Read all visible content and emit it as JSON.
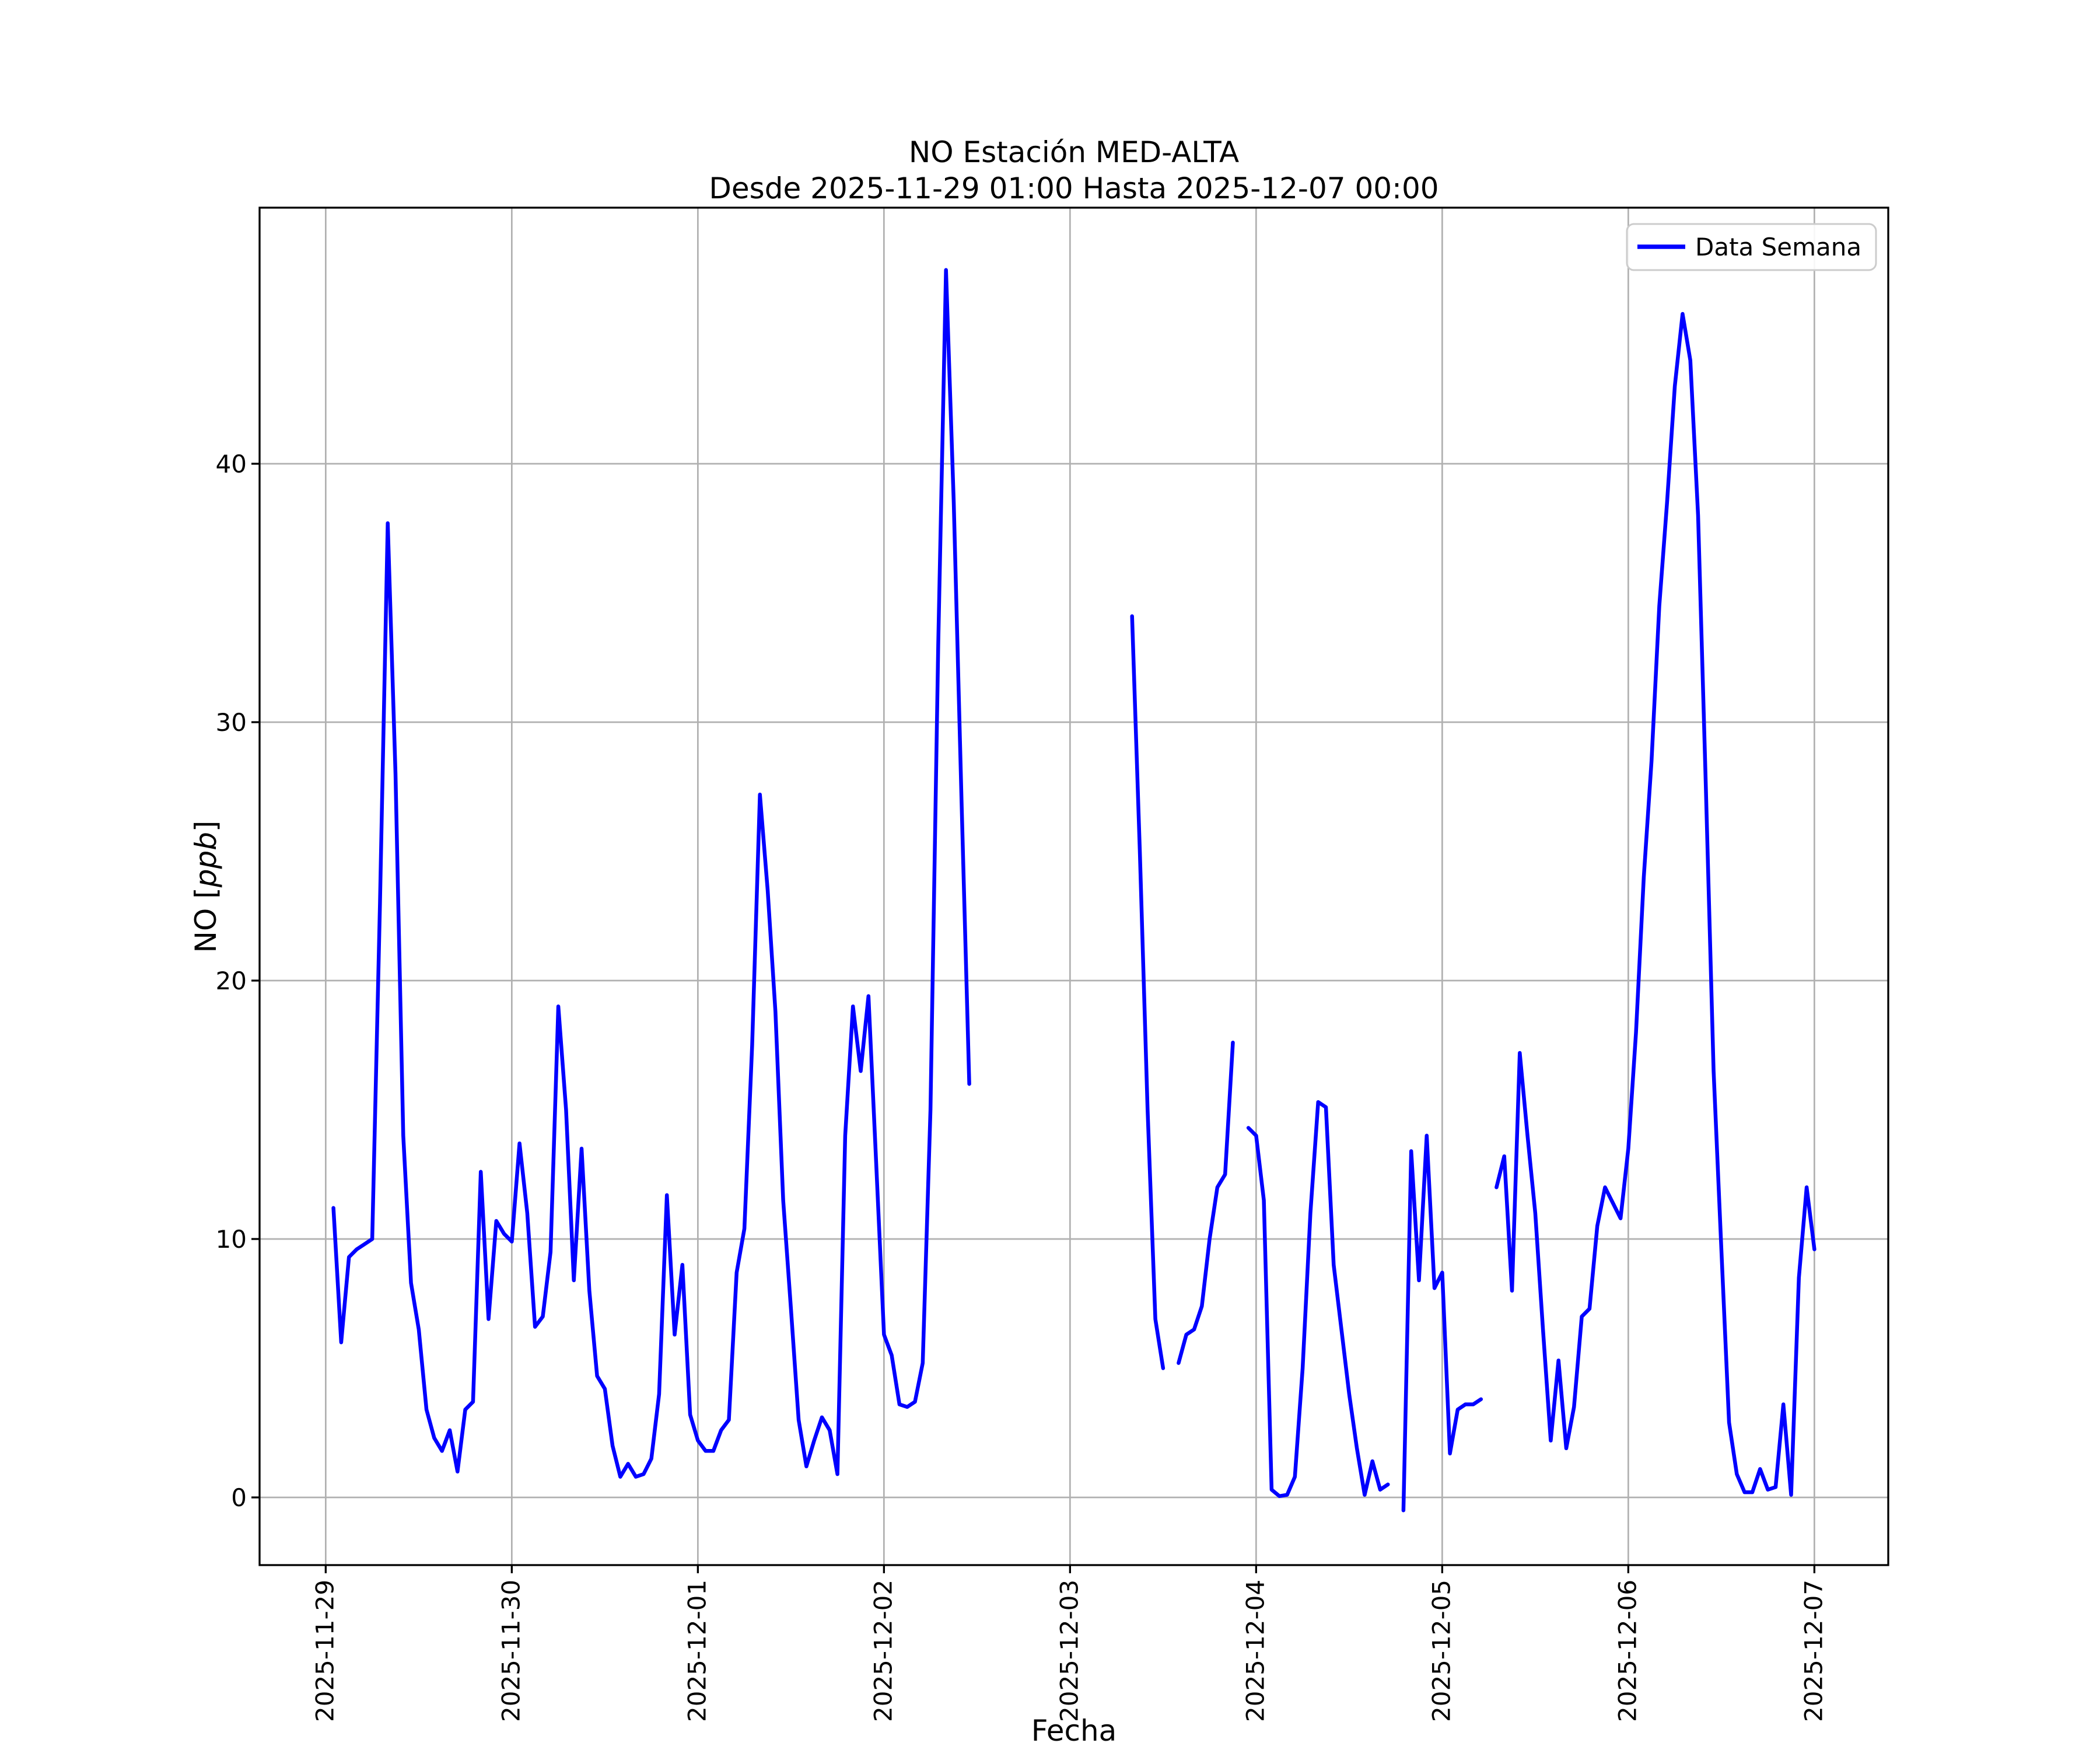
{
  "figure": {
    "background_color": "#ffffff",
    "line_color": "#0000ff",
    "grid_color": "#b0b0b0",
    "spine_color": "#000000",
    "legend_border_color": "#cccccc",
    "ylabel_prefix": "NO [",
    "ylabel_italic": "ppb",
    "ylabel_suffix": "]",
    "legend_label": "Data Semana"
  },
  "chart_data": {
    "type": "line",
    "title": "NO Estación MED-ALTA",
    "subtitle": "Desde 2025-11-29 01:00 Hasta 2025-12-07 00:00",
    "xlabel": "Fecha",
    "ylabel": "NO [ppb]",
    "grid": true,
    "legend_entries": [
      "Data Semana"
    ],
    "legend_position": "upper right",
    "x_axis": {
      "unit": "hours",
      "tick_interval_hours": 24,
      "tick_labels": [
        "2025-11-29",
        "2025-11-30",
        "2025-12-01",
        "2025-12-02",
        "2025-12-03",
        "2025-12-04",
        "2025-12-05",
        "2025-12-06",
        "2025-12-07"
      ]
    },
    "y_axis": {
      "ticks": [
        0,
        10,
        20,
        30,
        40
      ],
      "lim": [
        -2.7,
        49.9
      ]
    },
    "series": [
      {
        "name": "Data Semana",
        "color": "#0000ff",
        "start": "2025-11-29 01:00",
        "interval_hours": 1,
        "values": [
          11.2,
          6,
          9.3,
          9.6,
          9.8,
          10,
          23,
          37.7,
          28,
          14,
          8.3,
          6.5,
          3.4,
          2.3,
          1.8,
          2.6,
          1,
          3.4,
          3.7,
          12.6,
          6.9,
          10.7,
          10.2,
          9.9,
          13.7,
          11,
          6.6,
          7,
          9.5,
          19,
          15,
          8.4,
          13.5,
          8,
          4.7,
          4.2,
          2,
          0.8,
          1.3,
          0.8,
          0.9,
          1.5,
          4,
          11.7,
          6.3,
          9,
          3.2,
          2.2,
          1.8,
          1.8,
          2.6,
          3,
          8.7,
          10.4,
          17.5,
          27.2,
          23.5,
          18.8,
          11.5,
          7.3,
          3,
          1.2,
          2.2,
          3.1,
          2.6,
          0.9,
          14,
          19,
          16.5,
          19.4,
          12.9,
          6.3,
          5.5,
          3.6,
          3.5,
          3.7,
          5.2,
          15,
          33,
          47.5,
          38.5,
          27,
          16,
          null,
          null,
          null,
          null,
          null,
          null,
          null,
          null,
          null,
          null,
          null,
          null,
          null,
          null,
          null,
          null,
          null,
          null,
          null,
          null,
          34.1,
          25,
          15,
          6.9,
          5,
          null,
          5.2,
          6.3,
          6.5,
          7.4,
          10,
          12,
          12.5,
          17.6,
          null,
          14.3,
          14,
          11.5,
          0.3,
          0.05,
          0.1,
          0.8,
          5,
          11,
          15.3,
          15.1,
          9,
          6.5,
          4,
          1.9,
          0.1,
          1.4,
          0.3,
          0.5,
          null,
          -0.5,
          13.4,
          8.4,
          14,
          8.1,
          8.7,
          1.7,
          3.4,
          3.6,
          3.6,
          3.8,
          null,
          12,
          13.2,
          8,
          17.2,
          14,
          11,
          6.5,
          2.2,
          5.3,
          1.9,
          3.5,
          7,
          7.3,
          10.5,
          12,
          11.4,
          10.8,
          13.5,
          18,
          24,
          28.5,
          34.5,
          38.5,
          43,
          45.8,
          44,
          38,
          27.5,
          16.5,
          9.6,
          2.9,
          0.9,
          0.2,
          0.2,
          1.1,
          0.3,
          0.4,
          3.6,
          0.1,
          8.5,
          12,
          9.6
        ]
      }
    ]
  }
}
